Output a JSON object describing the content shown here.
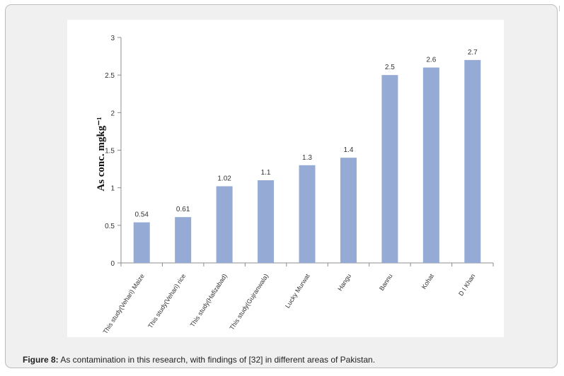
{
  "chart_data": {
    "type": "bar",
    "categories": [
      "This study(Vehari) Maize",
      "This study(Vehari) rice",
      "This study(Hafizabad)",
      "This study(Gujranwala)",
      "Lucky Murwat",
      "Hangu",
      "Bannu",
      "Kohat",
      "D I Khan"
    ],
    "values": [
      0.54,
      0.61,
      1.02,
      1.1,
      1.3,
      1.4,
      2.5,
      2.6,
      2.7
    ],
    "value_labels": [
      "0.54",
      "0.61",
      "1.02",
      "1.1",
      "1.3",
      "1.4",
      "2.5",
      "2.6",
      "2.7"
    ],
    "ylabel": "As conc. mgkg⁻¹",
    "ylim": [
      0,
      3
    ],
    "yticks": [
      "0",
      "0.5",
      "1",
      "1.5",
      "2",
      "2.5",
      "3"
    ],
    "grid": false,
    "bar_color": "#95abd6"
  },
  "caption": {
    "label": "Figure 8:",
    "text": " As contamination in this research, with findings of [32] in different areas of Pakistan."
  }
}
